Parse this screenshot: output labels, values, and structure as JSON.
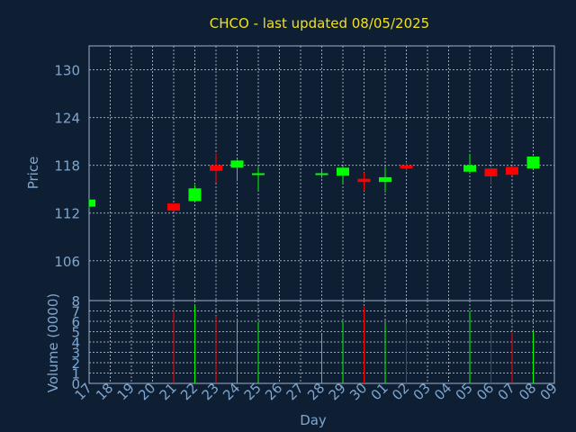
{
  "chart_data": {
    "type": "candlestick",
    "title": "CHCO - last updated 08/05/2025",
    "price_panel": {
      "ylabel": "Price",
      "ylim": [
        101,
        133
      ],
      "yticks": [
        106,
        112,
        118,
        124,
        130
      ]
    },
    "volume_panel": {
      "ylabel": "Volume (0000)",
      "ylim": [
        0,
        8
      ],
      "yticks": [
        0,
        1,
        2,
        3,
        4,
        5,
        6,
        7,
        8
      ]
    },
    "xlabel": "Day",
    "x_tick_labels": [
      "17",
      "18",
      "19",
      "20",
      "21",
      "22",
      "23",
      "24",
      "25",
      "26",
      "27",
      "28",
      "29",
      "30",
      "01",
      "02",
      "03",
      "04",
      "05",
      "06",
      "07",
      "08",
      "09"
    ],
    "x_tick_index": [
      0,
      1,
      2,
      3,
      4,
      5,
      6,
      7,
      8,
      9,
      10,
      11,
      12,
      13,
      14,
      15,
      16,
      17,
      18,
      19,
      20,
      21,
      22
    ],
    "up_color": "#00ff00",
    "down_color": "#ff0000",
    "candles": [
      {
        "day": "17",
        "i": 0,
        "open": 112.8,
        "high": 113.8,
        "low": 112.6,
        "close": 113.7,
        "volume": 0
      },
      {
        "day": "21",
        "i": 4,
        "open": 113.2,
        "high": 113.2,
        "low": 112.2,
        "close": 112.3,
        "volume": 7.0
      },
      {
        "day": "22",
        "i": 5,
        "open": 113.5,
        "high": 115.5,
        "low": 113.5,
        "close": 115.1,
        "volume": 7.6
      },
      {
        "day": "23",
        "i": 6,
        "open": 118.0,
        "high": 119.5,
        "low": 115.8,
        "close": 117.3,
        "volume": 6.5
      },
      {
        "day": "24",
        "i": 7,
        "open": 117.7,
        "high": 118.7,
        "low": 116.0,
        "close": 118.6,
        "volume": 6.0
      },
      {
        "day": "25",
        "i": 8,
        "open": 116.8,
        "high": 117.8,
        "low": 114.8,
        "close": 117.0,
        "volume": 5.9
      },
      {
        "day": "28",
        "i": 11,
        "open": 116.8,
        "high": 117.6,
        "low": 116.4,
        "close": 117.0,
        "volume": 4.7
      },
      {
        "day": "29",
        "i": 12,
        "open": 116.7,
        "high": 117.8,
        "low": 115.8,
        "close": 117.7,
        "volume": 6.0
      },
      {
        "day": "30",
        "i": 13,
        "open": 116.3,
        "high": 117.1,
        "low": 114.8,
        "close": 115.9,
        "volume": 7.4
      },
      {
        "day": "01",
        "i": 14,
        "open": 115.9,
        "high": 117.8,
        "low": 114.6,
        "close": 116.5,
        "volume": 5.8
      },
      {
        "day": "02",
        "i": 15,
        "open": 118.0,
        "high": 118.4,
        "low": 117.3,
        "close": 117.6,
        "volume": 5.8
      },
      {
        "day": "05",
        "i": 18,
        "open": 117.2,
        "high": 119.4,
        "low": 117.0,
        "close": 118.0,
        "volume": 7.0
      },
      {
        "day": "06",
        "i": 19,
        "open": 117.6,
        "high": 117.7,
        "low": 115.6,
        "close": 116.6,
        "volume": 5.3
      },
      {
        "day": "07",
        "i": 20,
        "open": 117.8,
        "high": 117.9,
        "low": 116.7,
        "close": 116.8,
        "volume": 4.9
      },
      {
        "day": "08",
        "i": 21,
        "open": 117.6,
        "high": 119.1,
        "low": 117.5,
        "close": 119.1,
        "volume": 5.0
      }
    ]
  }
}
